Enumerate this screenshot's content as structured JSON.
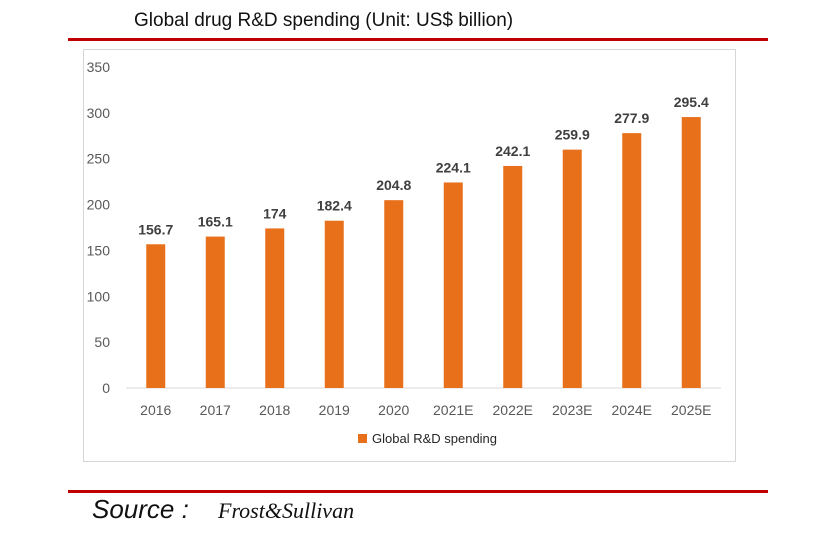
{
  "header": {
    "title": "Global drug R&D spending (Unit: US$ billion)"
  },
  "footer": {
    "source_label": "Source :",
    "source_value": "Frost&Sullivan"
  },
  "colors": {
    "bar": "#e8701a",
    "rule": "#c00000",
    "axis": "#d9d9d9"
  },
  "chart_data": {
    "type": "bar",
    "title": "Global drug R&D spending (Unit: US$ billion)",
    "xlabel": "",
    "ylabel": "",
    "ylim": [
      0,
      350
    ],
    "y_ticks": [
      0,
      50,
      100,
      150,
      200,
      250,
      300,
      350
    ],
    "grid": false,
    "legend_position": "bottom",
    "categories": [
      "2016",
      "2017",
      "2018",
      "2019",
      "2020",
      "2021E",
      "2022E",
      "2023E",
      "2024E",
      "2025E"
    ],
    "series": [
      {
        "name": "Global R&D spending",
        "values": [
          156.7,
          165.1,
          174,
          182.4,
          204.8,
          224.1,
          242.1,
          259.9,
          277.9,
          295.4
        ],
        "labels": [
          "156.7",
          "165.1",
          "174",
          "182.4",
          "204.8",
          "224.1",
          "242.1",
          "259.9",
          "277.9",
          "295.4"
        ]
      }
    ]
  }
}
